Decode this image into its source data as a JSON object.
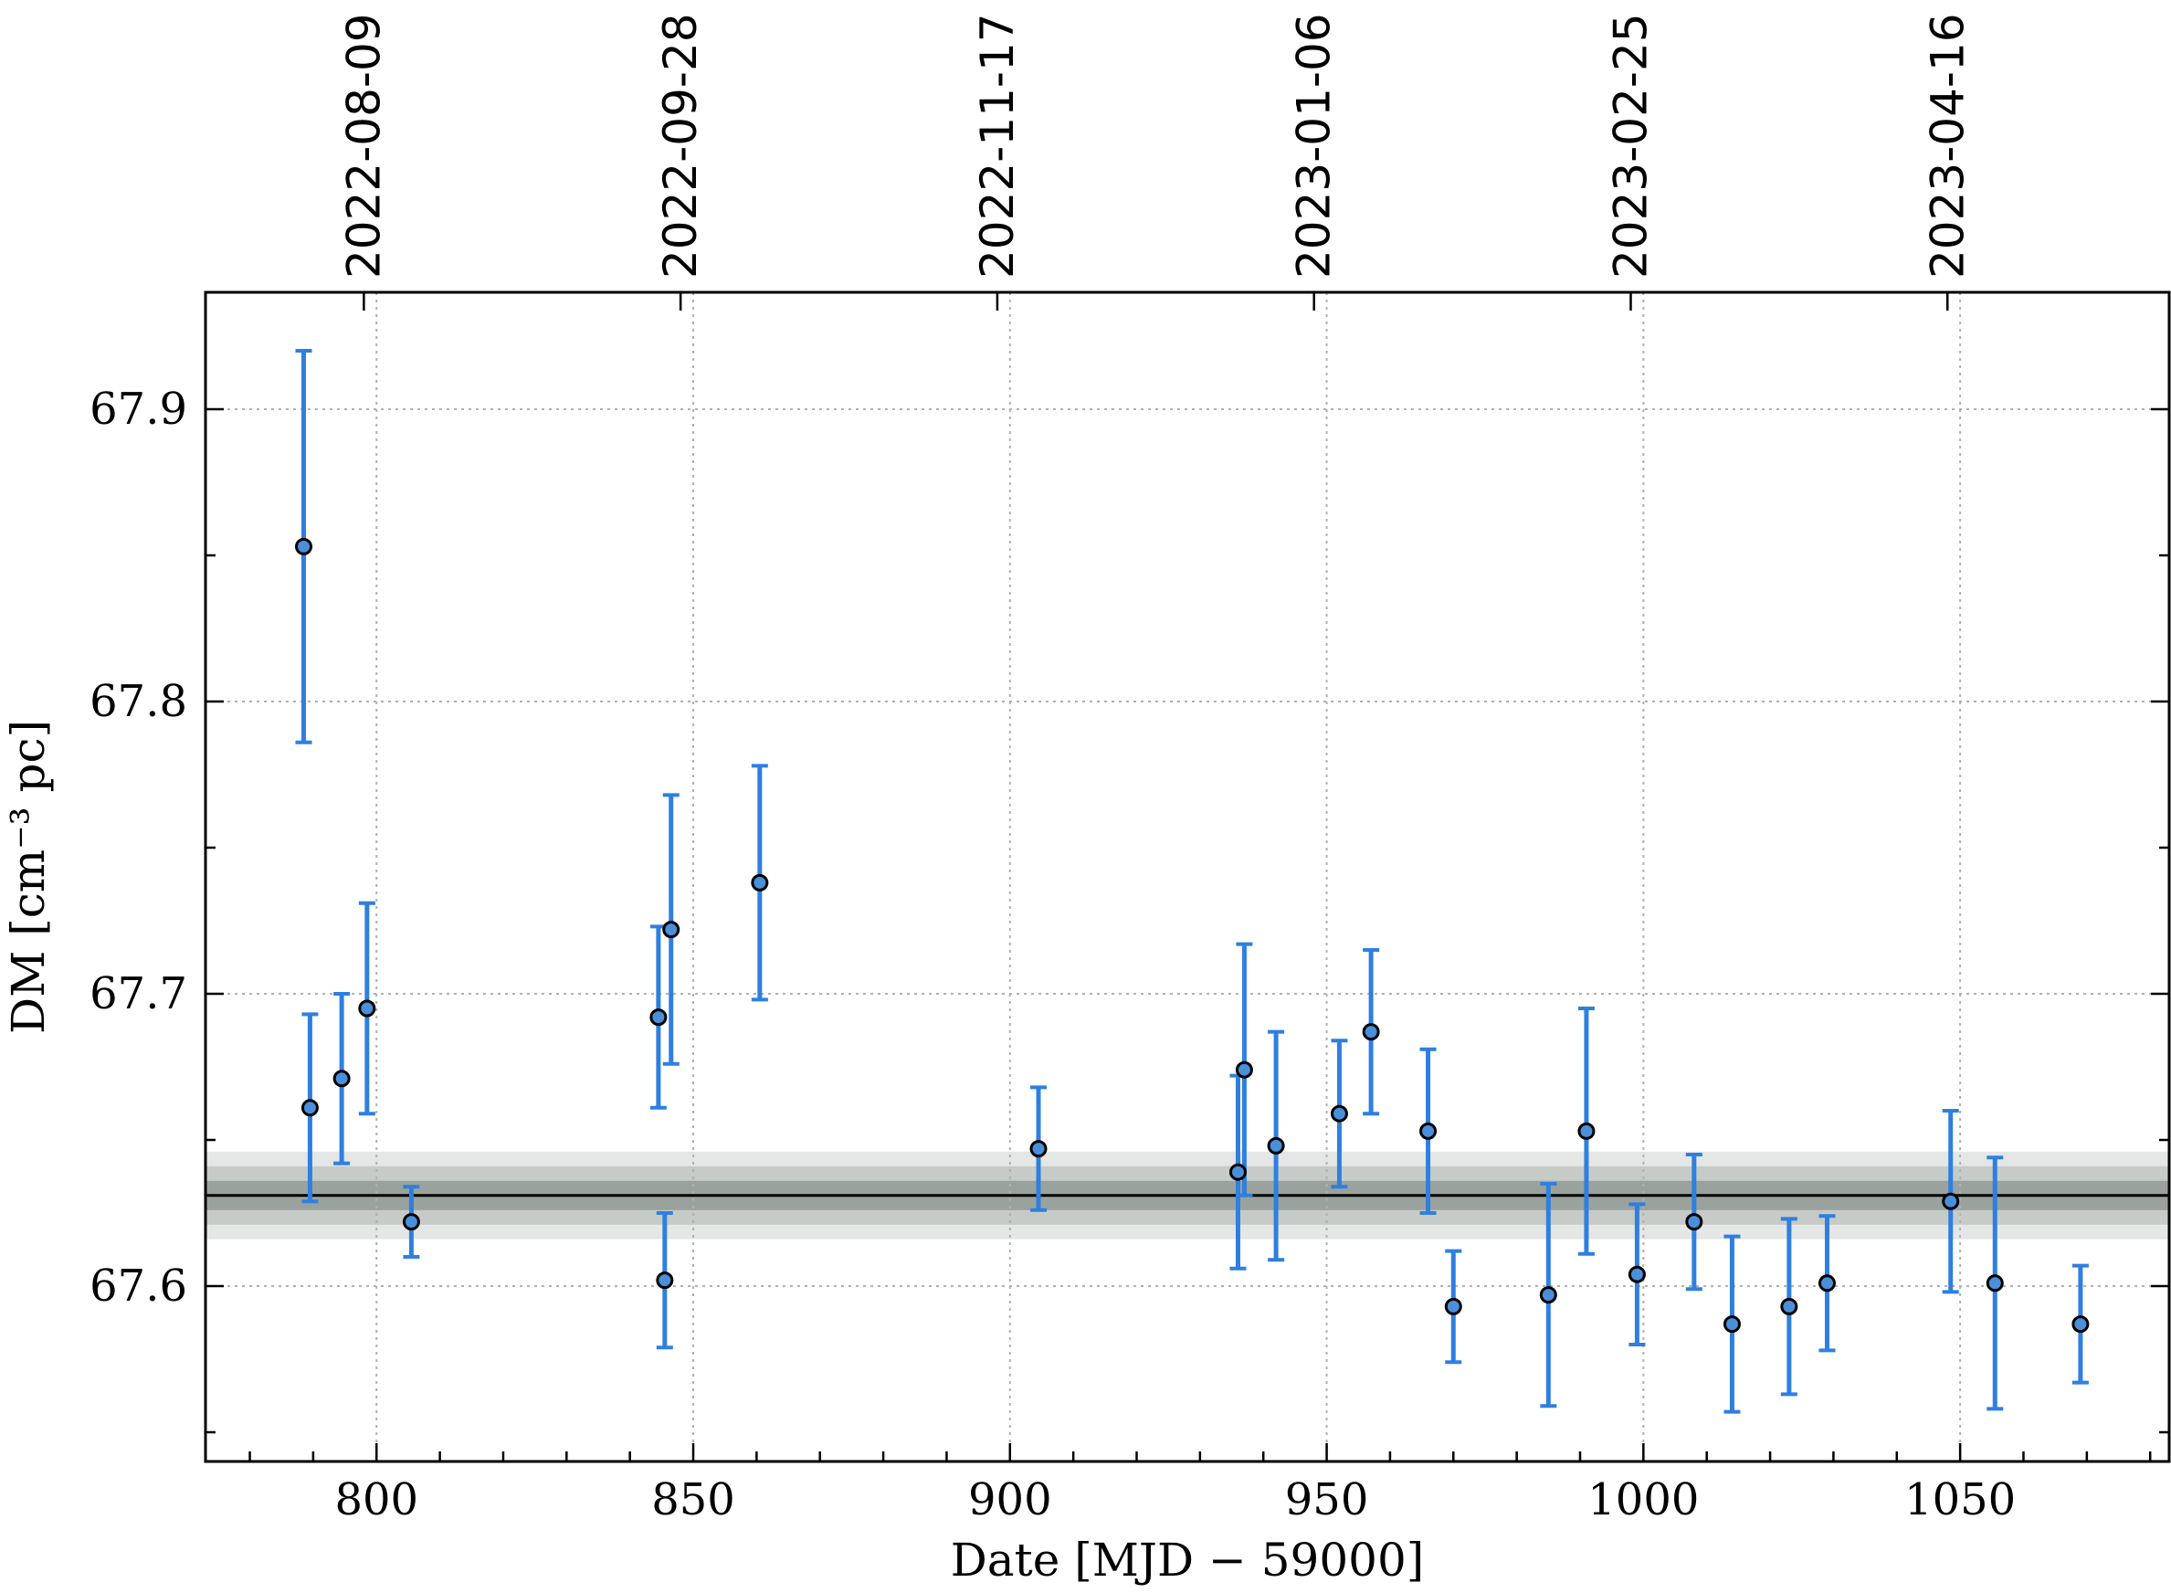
{
  "chart_data": {
    "type": "scatter",
    "xlabel": "Date [MJD − 59000]",
    "ylabel": "DM [cm⁻³ pc]",
    "xlim": [
      773,
      1083
    ],
    "ylim": [
      67.54,
      67.94
    ],
    "x_ticks": [
      800,
      850,
      900,
      950,
      1000,
      1050
    ],
    "x_tick_labels": [
      "800",
      "850",
      "900",
      "950",
      "1000",
      "1050"
    ],
    "y_ticks": [
      67.6,
      67.7,
      67.8,
      67.9
    ],
    "y_tick_labels": [
      "67.6",
      "67.7",
      "67.8",
      "67.9"
    ],
    "top_axis": {
      "ticks": [
        798,
        848,
        898,
        948,
        998,
        1048
      ],
      "labels": [
        "2022-08-09",
        "2022-09-28",
        "2022-11-17",
        "2023-01-06",
        "2023-02-25",
        "2023-04-16"
      ]
    },
    "grid": true,
    "series": [
      {
        "marker_color": "#4a8fd9",
        "errorbar_color": "#2f7fdf",
        "points": [
          {
            "x": 788.5,
            "y": 67.853,
            "err_low": 0.067,
            "err_high": 0.067
          },
          {
            "x": 789.5,
            "y": 67.661,
            "err_low": 0.032,
            "err_high": 0.032
          },
          {
            "x": 794.5,
            "y": 67.671,
            "err_low": 0.029,
            "err_high": 0.029
          },
          {
            "x": 798.5,
            "y": 67.695,
            "err_low": 0.036,
            "err_high": 0.036
          },
          {
            "x": 805.5,
            "y": 67.622,
            "err_low": 0.012,
            "err_high": 0.012
          },
          {
            "x": 844.5,
            "y": 67.692,
            "err_low": 0.031,
            "err_high": 0.031
          },
          {
            "x": 845.5,
            "y": 67.602,
            "err_low": 0.023,
            "err_high": 0.023
          },
          {
            "x": 846.5,
            "y": 67.722,
            "err_low": 0.046,
            "err_high": 0.046
          },
          {
            "x": 860.5,
            "y": 67.738,
            "err_low": 0.04,
            "err_high": 0.04
          },
          {
            "x": 904.5,
            "y": 67.647,
            "err_low": 0.021,
            "err_high": 0.021
          },
          {
            "x": 936.0,
            "y": 67.639,
            "err_low": 0.033,
            "err_high": 0.033
          },
          {
            "x": 937.0,
            "y": 67.674,
            "err_low": 0.043,
            "err_high": 0.043
          },
          {
            "x": 942.0,
            "y": 67.648,
            "err_low": 0.039,
            "err_high": 0.039
          },
          {
            "x": 952.0,
            "y": 67.659,
            "err_low": 0.025,
            "err_high": 0.025
          },
          {
            "x": 957.0,
            "y": 67.687,
            "err_low": 0.028,
            "err_high": 0.028
          },
          {
            "x": 966.0,
            "y": 67.653,
            "err_low": 0.028,
            "err_high": 0.028
          },
          {
            "x": 970.0,
            "y": 67.593,
            "err_low": 0.019,
            "err_high": 0.019
          },
          {
            "x": 985.0,
            "y": 67.597,
            "err_low": 0.038,
            "err_high": 0.038
          },
          {
            "x": 991.0,
            "y": 67.653,
            "err_low": 0.042,
            "err_high": 0.042
          },
          {
            "x": 999.0,
            "y": 67.604,
            "err_low": 0.024,
            "err_high": 0.024
          },
          {
            "x": 1008.0,
            "y": 67.622,
            "err_low": 0.023,
            "err_high": 0.023
          },
          {
            "x": 1014.0,
            "y": 67.587,
            "err_low": 0.03,
            "err_high": 0.03
          },
          {
            "x": 1023.0,
            "y": 67.593,
            "err_low": 0.03,
            "err_high": 0.03
          },
          {
            "x": 1029.0,
            "y": 67.601,
            "err_low": 0.023,
            "err_high": 0.023
          },
          {
            "x": 1048.5,
            "y": 67.629,
            "err_low": 0.031,
            "err_high": 0.031
          },
          {
            "x": 1055.5,
            "y": 67.601,
            "err_low": 0.043,
            "err_high": 0.043
          },
          {
            "x": 1069.0,
            "y": 67.587,
            "err_low": 0.02,
            "err_high": 0.02
          }
        ]
      }
    ],
    "mean_line": {
      "y": 67.631,
      "color": "#000000",
      "bands": [
        {
          "low": 67.616,
          "high": 67.646,
          "color": "#e4e7e5"
        },
        {
          "low": 67.621,
          "high": 67.641,
          "color": "#c6cbc8"
        },
        {
          "low": 67.626,
          "high": 67.636,
          "color": "#9aa29e"
        }
      ]
    }
  }
}
